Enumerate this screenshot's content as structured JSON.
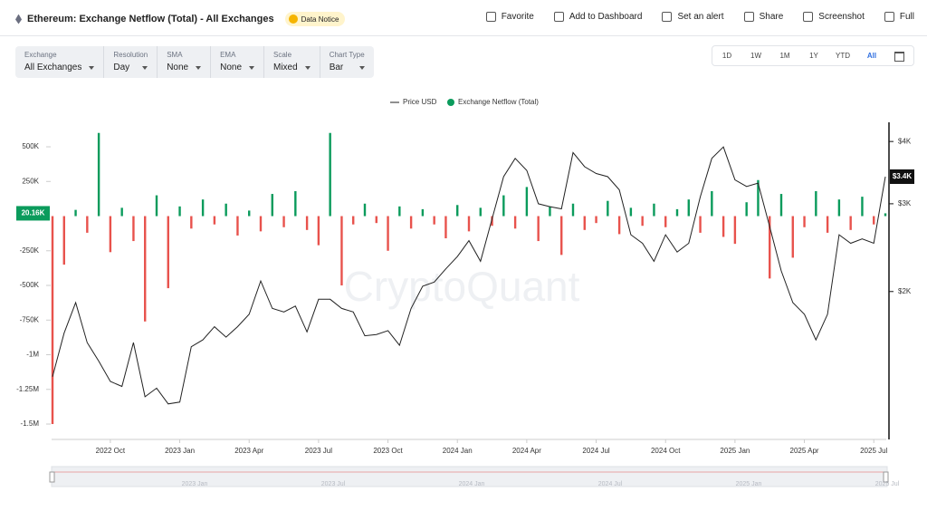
{
  "header": {
    "title": "Ethereum: Exchange Netflow (Total) - All Exchanges",
    "notice": "Data Notice",
    "actions": [
      "Favorite",
      "Add to Dashboard",
      "Set an alert",
      "Share",
      "Screenshot",
      "Full"
    ]
  },
  "filters": [
    {
      "label": "Exchange",
      "value": "All Exchanges"
    },
    {
      "label": "Resolution",
      "value": "Day"
    },
    {
      "label": "SMA",
      "value": "None"
    },
    {
      "label": "EMA",
      "value": "None"
    },
    {
      "label": "Scale",
      "value": "Mixed"
    },
    {
      "label": "Chart Type",
      "value": "Bar"
    }
  ],
  "range_buttons": [
    "1D",
    "1W",
    "1M",
    "1Y",
    "YTD",
    "All"
  ],
  "navigator": {
    "labels": [
      "2023 Jan",
      "2023 Jul",
      "2024 Jan",
      "2024 Jul",
      "2025 Jan",
      "2025 Jul"
    ]
  },
  "chart_data": {
    "type": "bar-line",
    "watermark": "CryptoQuant",
    "categories": [
      null,
      null,
      null,
      null,
      null,
      "2022 Oct",
      null,
      null,
      null,
      null,
      null,
      "2023 Jan",
      null,
      null,
      null,
      null,
      null,
      "2023 Apr",
      null,
      null,
      null,
      null,
      null,
      "2023 Jul",
      null,
      null,
      null,
      null,
      null,
      "2023 Oct",
      null,
      null,
      null,
      null,
      null,
      "2024 Jan",
      null,
      null,
      null,
      null,
      null,
      "2024 Apr",
      null,
      null,
      null,
      null,
      null,
      "2024 Jul",
      null,
      null,
      null,
      null,
      null,
      "2024 Oct",
      null,
      null,
      null,
      null,
      null,
      "2025 Jan",
      null,
      null,
      null,
      null,
      null,
      "2025 Apr",
      null,
      null,
      null,
      null,
      null,
      "2025 Jul",
      null
    ],
    "series": [
      {
        "name": "Exchange Netflow (Total)",
        "color": "#0b9b5c",
        "negative_color": "#e8524c",
        "values": [
          -1500000,
          -350000,
          45000,
          -120000,
          600000,
          -260000,
          60000,
          -180000,
          -760000,
          150000,
          -520000,
          70000,
          -90000,
          120000,
          -60000,
          90000,
          -140000,
          40000,
          -110000,
          160000,
          -80000,
          180000,
          -100000,
          -210000,
          600000,
          -500000,
          -60000,
          90000,
          -50000,
          -250000,
          70000,
          -90000,
          50000,
          -60000,
          -160000,
          80000,
          -110000,
          60000,
          -70000,
          150000,
          -90000,
          210000,
          -180000,
          70000,
          -280000,
          90000,
          -100000,
          -50000,
          110000,
          -130000,
          60000,
          -70000,
          90000,
          -80000,
          50000,
          120000,
          -120000,
          180000,
          -150000,
          -200000,
          100000,
          260000,
          -450000,
          160000,
          -300000,
          -80000,
          180000,
          -120000,
          120000,
          -100000,
          140000,
          -60000,
          20160
        ]
      },
      {
        "name": "Price USD",
        "color": "#222222",
        "axis": "y2",
        "values": [
          1350,
          1650,
          1900,
          1580,
          1450,
          1320,
          1290,
          1580,
          1230,
          1280,
          1190,
          1200,
          1550,
          1600,
          1700,
          1620,
          1700,
          1800,
          2100,
          1850,
          1820,
          1870,
          1660,
          1930,
          1930,
          1850,
          1820,
          1630,
          1640,
          1670,
          1560,
          1850,
          2050,
          2090,
          2220,
          2350,
          2530,
          2300,
          2800,
          3400,
          3700,
          3500,
          3000,
          2960,
          2930,
          3800,
          3560,
          3450,
          3400,
          3200,
          2600,
          2500,
          2300,
          2600,
          2400,
          2500,
          3100,
          3700,
          3900,
          3350,
          3250,
          3300,
          2700,
          2200,
          1900,
          1800,
          1600,
          1800,
          2600,
          2500,
          2550,
          2500,
          3400
        ]
      }
    ],
    "ylim": [
      -1611000,
      644000
    ],
    "yticks": [
      {
        "value": 500000,
        "label": "500K"
      },
      {
        "value": 250000,
        "label": "250K"
      },
      {
        "value": -250000,
        "label": "-250K"
      },
      {
        "value": -500000,
        "label": "-500K"
      },
      {
        "value": -750000,
        "label": "-750K"
      },
      {
        "value": -1000000,
        "label": "-1M"
      },
      {
        "value": -1250000,
        "label": "-1.25M"
      },
      {
        "value": -1500000,
        "label": "-1.5M"
      }
    ],
    "y2lim": [
      1010,
      4280
    ],
    "y2log": true,
    "y2ticks": [
      {
        "value": 2000,
        "label": "$2K"
      },
      {
        "value": 3000,
        "label": "$3K"
      },
      {
        "value": 4000,
        "label": "$4K"
      }
    ],
    "current_labels": [
      {
        "value": 20160,
        "label": "20.16K",
        "axis": "y"
      },
      {
        "value": 3400,
        "label": "$3.4K",
        "axis": "y2"
      }
    ]
  }
}
